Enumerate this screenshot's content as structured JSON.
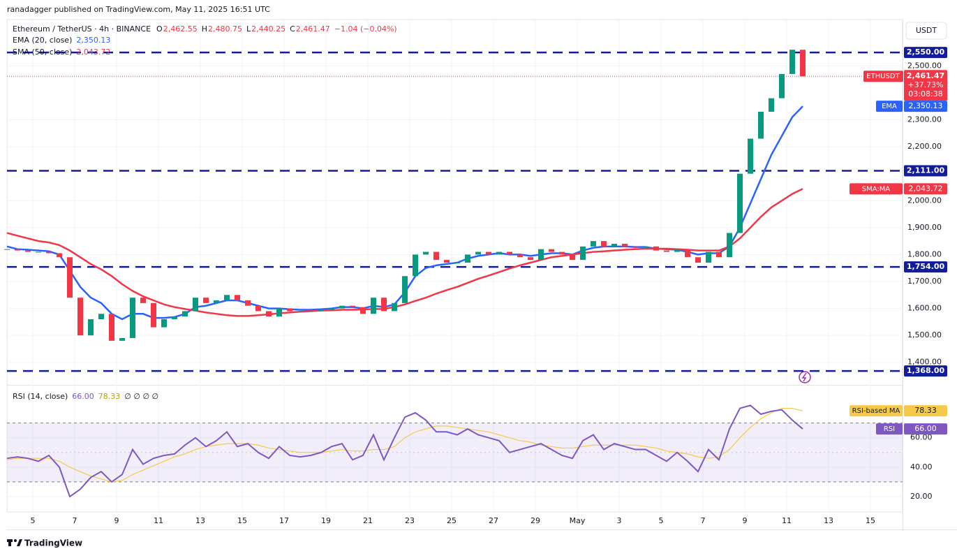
{
  "header": {
    "publisher": "ranadagger published on TradingView.com, May 11, 2025 16:51 UTC",
    "currency": "USDT",
    "brand": "TradingView"
  },
  "chart_data": {
    "type": "candlestick",
    "symbol": "Ethereum / TetherUS · 4h · BINANCE",
    "ohlc": [
      {
        "label": "O",
        "value": "2,462.55"
      },
      {
        "label": "H",
        "value": "2,480.75"
      },
      {
        "label": "L",
        "value": "2,440.25"
      },
      {
        "label": "C",
        "value": "2,461.47"
      }
    ],
    "change": "−1.04 (−0.04%)",
    "ticker": "ETHUSDT",
    "last_price_label": "2,461.47",
    "change_pct": "+37.73%",
    "countdown": "03:08:38",
    "up_color": "#089981",
    "down_color": "#f23645",
    "close": [
      1820,
      1815,
      1810,
      1810,
      1805,
      1790,
      1640,
      1500,
      1560,
      1580,
      1480,
      1490,
      1640,
      1620,
      1530,
      1560,
      1570,
      1590,
      1640,
      1620,
      1630,
      1650,
      1630,
      1610,
      1590,
      1570,
      1600,
      1590,
      1590,
      1590,
      1595,
      1600,
      1610,
      1605,
      1580,
      1640,
      1590,
      1620,
      1720,
      1800,
      1810,
      1780,
      1770,
      1770,
      1800,
      1810,
      1800,
      1810,
      1800,
      1790,
      1780,
      1820,
      1810,
      1800,
      1780,
      1830,
      1850,
      1830,
      1840,
      1830,
      1825,
      1830,
      1815,
      1810,
      1820,
      1790,
      1770,
      1810,
      1790,
      1880,
      2100,
      2230,
      2330,
      2380,
      2470,
      2560,
      2461.47
    ],
    "ylim": [
      1319,
      2672
    ],
    "yticks": [
      {
        "value": 1400,
        "label": "1,400.00"
      },
      {
        "value": 1500,
        "label": "1,500.00"
      },
      {
        "value": 1600,
        "label": "1,600.00"
      },
      {
        "value": 1700,
        "label": "1,700.00"
      },
      {
        "value": 1800,
        "label": "1,800.00"
      },
      {
        "value": 1900,
        "label": "1,900.00"
      },
      {
        "value": 2000,
        "label": "2,000.00"
      },
      {
        "value": 2200,
        "label": "2,200.00"
      },
      {
        "value": 2300,
        "label": "2,300.00"
      },
      {
        "value": 2500,
        "label": "2,500.00"
      }
    ],
    "x_labels": [
      "5",
      "7",
      "9",
      "11",
      "13",
      "15",
      "17",
      "19",
      "21",
      "23",
      "25",
      "27",
      "29",
      "May",
      "3",
      "5",
      "7",
      "9",
      "11",
      "13",
      "15"
    ],
    "levels": [
      {
        "value": 2550,
        "label": "2,550.00"
      },
      {
        "value": 2111,
        "label": "2,111.00"
      },
      {
        "value": 1754,
        "label": "1,754.00"
      },
      {
        "value": 1368,
        "label": "1,368.00"
      }
    ],
    "level_color": "#131c9c",
    "series": [
      {
        "name": "EMA (20, close)",
        "short": "EMA",
        "color": "#2962ff",
        "last_label": "2,350.13",
        "values": [
          1830,
          1820,
          1818,
          1815,
          1812,
          1800,
          1740,
          1680,
          1640,
          1620,
          1580,
          1560,
          1580,
          1580,
          1565,
          1565,
          1568,
          1580,
          1605,
          1610,
          1620,
          1630,
          1630,
          1620,
          1610,
          1600,
          1600,
          1597,
          1595,
          1595,
          1597,
          1600,
          1605,
          1605,
          1600,
          1610,
          1605,
          1615,
          1660,
          1720,
          1750,
          1760,
          1765,
          1770,
          1785,
          1795,
          1800,
          1805,
          1800,
          1800,
          1795,
          1800,
          1805,
          1805,
          1800,
          1815,
          1825,
          1830,
          1830,
          1830,
          1828,
          1828,
          1822,
          1820,
          1818,
          1810,
          1800,
          1805,
          1805,
          1830,
          1900,
          1990,
          2080,
          2170,
          2240,
          2310,
          2350.13
        ]
      },
      {
        "name": "SMA (50, close)",
        "short": "SMA:MA",
        "color": "#f23645",
        "last_label": "2,043.72",
        "values": [
          1880,
          1870,
          1860,
          1850,
          1845,
          1835,
          1815,
          1790,
          1765,
          1745,
          1720,
          1690,
          1665,
          1645,
          1630,
          1615,
          1605,
          1598,
          1592,
          1585,
          1580,
          1575,
          1572,
          1572,
          1575,
          1578,
          1582,
          1585,
          1588,
          1590,
          1592,
          1593,
          1595,
          1595,
          1596,
          1598,
          1598,
          1605,
          1615,
          1628,
          1640,
          1655,
          1668,
          1680,
          1695,
          1710,
          1722,
          1735,
          1748,
          1760,
          1770,
          1780,
          1790,
          1795,
          1800,
          1805,
          1810,
          1812,
          1815,
          1818,
          1820,
          1822,
          1822,
          1822,
          1820,
          1818,
          1815,
          1815,
          1815,
          1830,
          1860,
          1900,
          1940,
          1975,
          2000,
          2025,
          2043.72
        ]
      }
    ],
    "rsi": {
      "name": "RSI (14, close)",
      "short": "RSI",
      "color": "#7e57c2",
      "last_label": "66.00",
      "extra": "∅ ∅ ∅ ∅",
      "values": [
        46,
        47,
        46,
        44,
        48,
        40,
        20,
        25,
        33,
        37,
        30,
        35,
        52,
        42,
        46,
        48,
        49,
        55,
        60,
        54,
        58,
        64,
        54,
        56,
        50,
        46,
        54,
        48,
        47,
        48,
        50,
        54,
        56,
        45,
        48,
        62,
        45,
        60,
        74,
        77,
        72,
        64,
        64,
        62,
        66,
        62,
        60,
        58,
        50,
        52,
        54,
        56,
        52,
        48,
        46,
        58,
        62,
        52,
        56,
        54,
        52,
        52,
        48,
        44,
        50,
        44,
        37,
        52,
        45,
        66,
        80,
        82,
        76,
        78,
        79,
        72,
        66
      ],
      "ma": {
        "name": "RSI-based MA",
        "color": "#f7c948",
        "last_label": "78.33",
        "values": [
          45,
          46,
          46,
          46,
          46,
          44,
          40,
          37,
          34,
          32,
          30,
          31,
          35,
          38,
          41,
          44,
          47,
          49,
          52,
          54,
          55,
          56,
          56,
          56,
          55,
          53,
          52,
          51,
          50,
          50,
          50,
          51,
          52,
          51,
          51,
          52,
          52,
          54,
          60,
          64,
          66,
          68,
          68,
          67,
          66,
          65,
          64,
          62,
          60,
          58,
          57,
          55,
          54,
          53,
          53,
          54,
          55,
          55,
          55,
          55,
          55,
          54,
          53,
          51,
          50,
          49,
          47,
          46,
          47,
          52,
          60,
          67,
          73,
          77,
          80,
          80,
          78.33
        ]
      },
      "ylim": [
        10,
        95
      ],
      "yticks": [
        {
          "value": 20,
          "label": "20.00"
        },
        {
          "value": 40,
          "label": "40.00"
        },
        {
          "value": 60,
          "label": "60.00"
        }
      ],
      "band": [
        30,
        70
      ],
      "mid": 50
    }
  }
}
